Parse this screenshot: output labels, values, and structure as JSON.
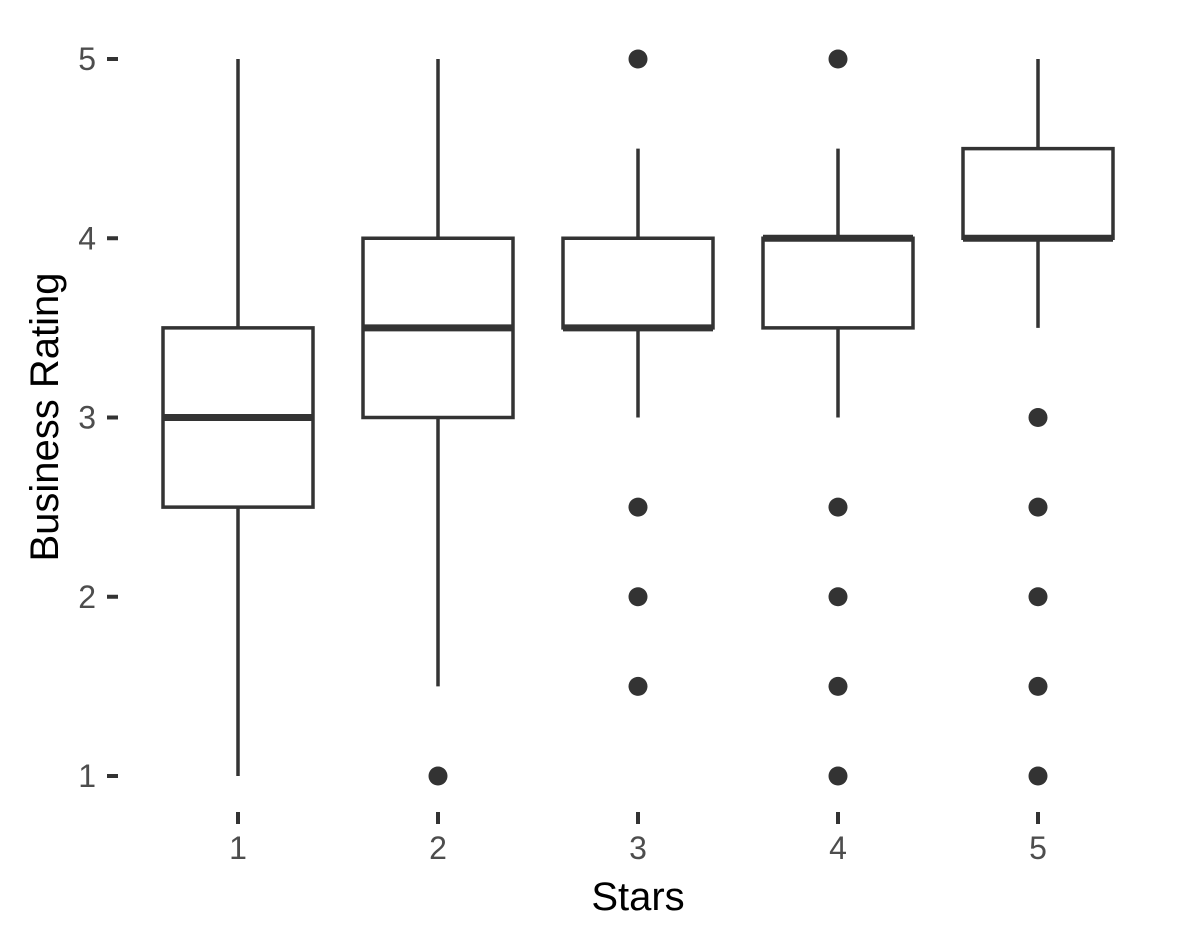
{
  "chart_data": {
    "type": "boxplot",
    "title": "",
    "xlabel": "Stars",
    "ylabel": "Business Rating",
    "categories": [
      "1",
      "2",
      "3",
      "4",
      "5"
    ],
    "ylim": [
      1,
      5
    ],
    "yticks": [
      1,
      2,
      3,
      4,
      5
    ],
    "grid": false,
    "legend": "none",
    "box_color": "#333333",
    "fill_color": "#ffffff",
    "boxes": [
      {
        "category": "1",
        "whisker_low": 1.0,
        "q1": 2.5,
        "median": 3.0,
        "q3": 3.5,
        "whisker_high": 5.0,
        "outliers": []
      },
      {
        "category": "2",
        "whisker_low": 1.5,
        "q1": 3.0,
        "median": 3.5,
        "q3": 4.0,
        "whisker_high": 5.0,
        "outliers": [
          1.0
        ]
      },
      {
        "category": "3",
        "whisker_low": 3.0,
        "q1": 3.5,
        "median": 3.5,
        "q3": 4.0,
        "whisker_high": 4.5,
        "outliers": [
          5.0,
          2.5,
          2.0,
          1.5
        ]
      },
      {
        "category": "4",
        "whisker_low": 3.0,
        "q1": 3.5,
        "median": 4.0,
        "q3": 4.0,
        "whisker_high": 4.5,
        "outliers": [
          5.0,
          2.5,
          2.0,
          1.5,
          1.0
        ]
      },
      {
        "category": "5",
        "whisker_low": 3.5,
        "q1": 4.0,
        "median": 4.0,
        "q3": 4.5,
        "whisker_high": 5.0,
        "outliers": [
          3.0,
          2.5,
          2.0,
          1.5,
          1.0
        ]
      }
    ]
  }
}
